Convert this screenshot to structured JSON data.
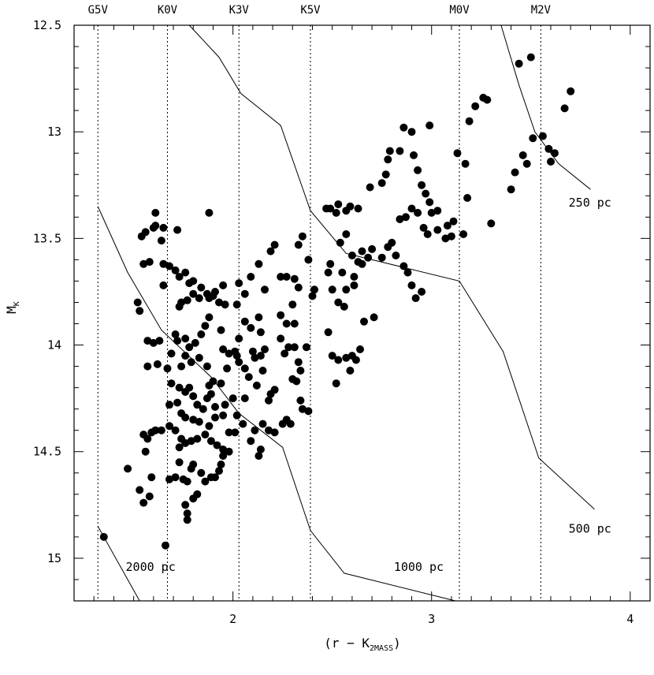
{
  "chart_data": {
    "type": "scatter",
    "xlabel": "(r − K",
    "xlabel_subscript": "2MASS",
    "xlabel_suffix": ")",
    "ylabel": "M",
    "ylabel_subscript": "K",
    "xlim": [
      1.2,
      4.1
    ],
    "ylim": [
      15.2,
      12.5
    ],
    "y_inverted": true,
    "grid": false,
    "x_ticks": [
      2,
      3,
      4
    ],
    "y_ticks": [
      12.5,
      13,
      13.5,
      14,
      14.5,
      15
    ],
    "x_tick_labels": [
      "2",
      "3",
      "4"
    ],
    "y_tick_labels": [
      "12.5",
      "13",
      "13.5",
      "14",
      "14.5",
      "15"
    ],
    "spectral_types": [
      {
        "label": "G5V",
        "x": 1.32
      },
      {
        "label": "K0V",
        "x": 1.67
      },
      {
        "label": "K3V",
        "x": 2.03
      },
      {
        "label": "K5V",
        "x": 2.39
      },
      {
        "label": "M0V",
        "x": 3.14
      },
      {
        "label": "M2V",
        "x": 3.55
      }
    ],
    "distance_curves": [
      {
        "label": "250 pc",
        "label_x": 3.69,
        "label_y": 13.35,
        "points": [
          [
            1.78,
            12.5
          ],
          [
            1.93,
            12.65
          ],
          [
            2.04,
            12.82
          ],
          [
            2.24,
            12.97
          ],
          [
            2.39,
            13.37
          ],
          [
            2.57,
            13.57
          ],
          [
            3.14,
            13.7
          ],
          [
            3.36,
            14.03
          ],
          [
            3.54,
            14.53
          ],
          [
            3.82,
            14.77
          ]
        ]
      },
      {
        "label": "500 pc",
        "label_x": 3.69,
        "label_y": 14.88,
        "points": [
          [
            3.35,
            12.5
          ],
          [
            3.44,
            12.78
          ],
          [
            3.52,
            13.0
          ],
          [
            3.64,
            13.15
          ],
          [
            3.8,
            13.27
          ]
        ]
      },
      {
        "label": "1000 pc",
        "label_x": 2.81,
        "label_y": 15.06,
        "points": [
          [
            1.32,
            13.35
          ],
          [
            1.47,
            13.66
          ],
          [
            1.64,
            13.93
          ],
          [
            1.89,
            14.15
          ],
          [
            2.03,
            14.32
          ],
          [
            2.25,
            14.48
          ],
          [
            2.39,
            14.87
          ],
          [
            2.56,
            15.07
          ],
          [
            3.12,
            15.2
          ]
        ]
      },
      {
        "label": "2000 pc",
        "label_x": 1.46,
        "label_y": 15.06,
        "points": [
          [
            1.32,
            14.85
          ],
          [
            1.53,
            15.2
          ]
        ]
      }
    ],
    "points": [
      [
        1.35,
        14.9
      ],
      [
        1.66,
        14.94
      ],
      [
        1.47,
        14.58
      ],
      [
        1.53,
        14.68
      ],
      [
        1.55,
        14.74
      ],
      [
        1.58,
        14.71
      ],
      [
        1.59,
        14.62
      ],
      [
        1.55,
        14.42
      ],
      [
        1.56,
        14.5
      ],
      [
        1.57,
        14.44
      ],
      [
        1.59,
        14.41
      ],
      [
        1.61,
        14.4
      ],
      [
        1.64,
        14.4
      ],
      [
        1.68,
        14.38
      ],
      [
        1.71,
        14.4
      ],
      [
        1.73,
        14.48
      ],
      [
        1.73,
        14.55
      ],
      [
        1.71,
        14.62
      ],
      [
        1.68,
        14.63
      ],
      [
        1.57,
        14.1
      ],
      [
        1.62,
        14.09
      ],
      [
        1.6,
        13.99
      ],
      [
        1.57,
        13.98
      ],
      [
        1.63,
        13.98
      ],
      [
        1.69,
        14.04
      ],
      [
        1.67,
        14.11
      ],
      [
        1.69,
        14.18
      ],
      [
        1.68,
        14.28
      ],
      [
        1.52,
        13.8
      ],
      [
        1.53,
        13.84
      ],
      [
        1.54,
        13.49
      ],
      [
        1.56,
        13.47
      ],
      [
        1.58,
        13.61
      ],
      [
        1.55,
        13.62
      ],
      [
        1.6,
        13.45
      ],
      [
        1.61,
        13.44
      ],
      [
        1.61,
        13.38
      ],
      [
        1.64,
        13.51
      ],
      [
        1.65,
        13.45
      ],
      [
        1.72,
        13.46
      ],
      [
        1.88,
        13.38
      ],
      [
        1.65,
        13.72
      ],
      [
        1.65,
        13.62
      ],
      [
        1.68,
        13.63
      ],
      [
        1.71,
        13.65
      ],
      [
        1.73,
        13.68
      ],
      [
        1.76,
        13.66
      ],
      [
        1.78,
        13.71
      ],
      [
        1.8,
        13.7
      ],
      [
        1.84,
        13.73
      ],
      [
        1.88,
        13.78
      ],
      [
        1.91,
        13.75
      ],
      [
        1.95,
        13.72
      ],
      [
        2.03,
        13.71
      ],
      [
        2.06,
        13.76
      ],
      [
        2.09,
        13.68
      ],
      [
        1.93,
        13.8
      ],
      [
        1.74,
        13.8
      ],
      [
        1.73,
        13.82
      ],
      [
        1.77,
        13.79
      ],
      [
        1.8,
        13.76
      ],
      [
        1.83,
        13.78
      ],
      [
        1.87,
        13.76
      ],
      [
        1.9,
        13.77
      ],
      [
        1.96,
        13.81
      ],
      [
        2.02,
        13.81
      ],
      [
        1.88,
        13.87
      ],
      [
        1.86,
        13.91
      ],
      [
        1.84,
        13.95
      ],
      [
        1.81,
        13.99
      ],
      [
        1.78,
        14.01
      ],
      [
        1.76,
        13.97
      ],
      [
        1.71,
        13.95
      ],
      [
        1.72,
        13.98
      ],
      [
        1.76,
        14.05
      ],
      [
        1.74,
        14.1
      ],
      [
        1.79,
        14.08
      ],
      [
        1.83,
        14.06
      ],
      [
        1.87,
        14.1
      ],
      [
        1.9,
        14.17
      ],
      [
        1.94,
        14.18
      ],
      [
        1.97,
        14.11
      ],
      [
        1.98,
        14.04
      ],
      [
        2.01,
        14.03
      ],
      [
        2.02,
        14.05
      ],
      [
        1.95,
        14.02
      ],
      [
        1.94,
        13.93
      ],
      [
        2.03,
        13.97
      ],
      [
        1.73,
        14.2
      ],
      [
        1.76,
        14.22
      ],
      [
        1.78,
        14.2
      ],
      [
        1.8,
        14.24
      ],
      [
        1.82,
        14.28
      ],
      [
        1.85,
        14.3
      ],
      [
        1.87,
        14.25
      ],
      [
        1.89,
        14.23
      ],
      [
        1.88,
        14.19
      ],
      [
        1.91,
        14.29
      ],
      [
        1.96,
        14.28
      ],
      [
        2.0,
        14.25
      ],
      [
        1.72,
        14.27
      ],
      [
        1.74,
        14.32
      ],
      [
        1.76,
        14.34
      ],
      [
        1.8,
        14.35
      ],
      [
        1.83,
        14.36
      ],
      [
        1.88,
        14.38
      ],
      [
        1.91,
        14.34
      ],
      [
        1.95,
        14.33
      ],
      [
        2.02,
        14.33
      ],
      [
        2.05,
        14.37
      ],
      [
        1.98,
        14.41
      ],
      [
        2.01,
        14.41
      ],
      [
        1.74,
        14.44
      ],
      [
        1.76,
        14.46
      ],
      [
        1.79,
        14.45
      ],
      [
        1.82,
        14.44
      ],
      [
        1.86,
        14.42
      ],
      [
        1.89,
        14.45
      ],
      [
        1.92,
        14.47
      ],
      [
        1.95,
        14.49
      ],
      [
        1.98,
        14.5
      ],
      [
        1.79,
        14.58
      ],
      [
        1.75,
        14.63
      ],
      [
        1.77,
        14.64
      ],
      [
        1.8,
        14.56
      ],
      [
        1.84,
        14.6
      ],
      [
        1.86,
        14.64
      ],
      [
        1.89,
        14.62
      ],
      [
        1.91,
        14.62
      ],
      [
        1.93,
        14.59
      ],
      [
        1.94,
        14.56
      ],
      [
        1.95,
        14.52
      ],
      [
        1.76,
        14.75
      ],
      [
        1.77,
        14.82
      ],
      [
        1.77,
        14.79
      ],
      [
        1.8,
        14.72
      ],
      [
        1.82,
        14.7
      ],
      [
        2.09,
        14.45
      ],
      [
        2.11,
        14.4
      ],
      [
        2.15,
        14.37
      ],
      [
        2.18,
        14.4
      ],
      [
        2.21,
        14.41
      ],
      [
        2.25,
        14.37
      ],
      [
        2.27,
        14.35
      ],
      [
        2.29,
        14.37
      ],
      [
        2.13,
        14.52
      ],
      [
        2.14,
        14.49
      ],
      [
        2.06,
        13.89
      ],
      [
        2.09,
        13.92
      ],
      [
        2.13,
        13.87
      ],
      [
        2.14,
        13.94
      ],
      [
        2.16,
        14.02
      ],
      [
        2.14,
        14.05
      ],
      [
        2.1,
        14.03
      ],
      [
        2.11,
        14.06
      ],
      [
        2.06,
        14.11
      ],
      [
        2.08,
        14.15
      ],
      [
        2.03,
        14.08
      ],
      [
        2.06,
        14.25
      ],
      [
        2.12,
        14.19
      ],
      [
        2.15,
        14.12
      ],
      [
        2.19,
        14.23
      ],
      [
        2.18,
        14.26
      ],
      [
        2.21,
        14.21
      ],
      [
        2.13,
        13.62
      ],
      [
        2.19,
        13.56
      ],
      [
        2.21,
        13.53
      ],
      [
        2.16,
        13.74
      ],
      [
        2.24,
        13.68
      ],
      [
        2.27,
        13.68
      ],
      [
        2.31,
        13.69
      ],
      [
        2.33,
        13.73
      ],
      [
        2.3,
        13.81
      ],
      [
        2.24,
        13.86
      ],
      [
        2.27,
        13.9
      ],
      [
        2.24,
        13.97
      ],
      [
        2.26,
        14.04
      ],
      [
        2.28,
        14.01
      ],
      [
        2.31,
        14.01
      ],
      [
        2.31,
        13.9
      ],
      [
        2.33,
        13.53
      ],
      [
        2.35,
        13.49
      ],
      [
        2.38,
        13.6
      ],
      [
        2.4,
        13.77
      ],
      [
        2.41,
        13.74
      ],
      [
        2.33,
        14.08
      ],
      [
        2.34,
        14.12
      ],
      [
        2.37,
        14.01
      ],
      [
        2.3,
        14.16
      ],
      [
        2.32,
        14.17
      ],
      [
        2.34,
        14.26
      ],
      [
        2.35,
        14.3
      ],
      [
        2.38,
        14.31
      ],
      [
        2.47,
        13.36
      ],
      [
        2.49,
        13.36
      ],
      [
        2.52,
        13.38
      ],
      [
        2.53,
        13.34
      ],
      [
        2.57,
        13.37
      ],
      [
        2.59,
        13.35
      ],
      [
        2.63,
        13.36
      ],
      [
        2.54,
        13.52
      ],
      [
        2.49,
        13.62
      ],
      [
        2.48,
        13.66
      ],
      [
        2.55,
        13.66
      ],
      [
        2.5,
        13.74
      ],
      [
        2.53,
        13.8
      ],
      [
        2.56,
        13.82
      ],
      [
        2.57,
        13.74
      ],
      [
        2.48,
        13.94
      ],
      [
        2.5,
        14.05
      ],
      [
        2.53,
        14.07
      ],
      [
        2.57,
        14.06
      ],
      [
        2.6,
        14.05
      ],
      [
        2.62,
        14.07
      ],
      [
        2.64,
        14.02
      ],
      [
        2.52,
        14.18
      ],
      [
        2.59,
        14.12
      ],
      [
        2.61,
        13.68
      ],
      [
        2.61,
        13.72
      ],
      [
        2.65,
        13.62
      ],
      [
        2.66,
        13.89
      ],
      [
        2.71,
        13.87
      ],
      [
        2.57,
        13.48
      ],
      [
        2.6,
        13.58
      ],
      [
        2.63,
        13.61
      ],
      [
        2.65,
        13.56
      ],
      [
        2.68,
        13.59
      ],
      [
        2.7,
        13.55
      ],
      [
        2.75,
        13.59
      ],
      [
        2.78,
        13.54
      ],
      [
        2.8,
        13.52
      ],
      [
        2.82,
        13.58
      ],
      [
        2.86,
        13.63
      ],
      [
        2.88,
        13.66
      ],
      [
        2.9,
        13.72
      ],
      [
        2.92,
        13.78
      ],
      [
        2.95,
        13.75
      ],
      [
        2.69,
        13.26
      ],
      [
        2.75,
        13.24
      ],
      [
        2.77,
        13.2
      ],
      [
        2.78,
        13.13
      ],
      [
        2.79,
        13.09
      ],
      [
        2.84,
        13.09
      ],
      [
        2.86,
        12.98
      ],
      [
        2.9,
        13.0
      ],
      [
        2.91,
        13.11
      ],
      [
        2.93,
        13.18
      ],
      [
        2.95,
        13.25
      ],
      [
        2.97,
        13.29
      ],
      [
        2.99,
        13.33
      ],
      [
        3.0,
        13.38
      ],
      [
        3.03,
        13.37
      ],
      [
        2.84,
        13.41
      ],
      [
        2.87,
        13.4
      ],
      [
        2.9,
        13.36
      ],
      [
        2.93,
        13.38
      ],
      [
        2.96,
        13.45
      ],
      [
        2.98,
        13.48
      ],
      [
        3.03,
        13.46
      ],
      [
        3.07,
        13.5
      ],
      [
        3.08,
        13.44
      ],
      [
        3.11,
        13.42
      ],
      [
        3.1,
        13.49
      ],
      [
        2.99,
        12.97
      ],
      [
        3.13,
        13.1
      ],
      [
        3.17,
        13.15
      ],
      [
        3.18,
        13.31
      ],
      [
        3.16,
        13.48
      ],
      [
        3.19,
        12.95
      ],
      [
        3.22,
        12.88
      ],
      [
        3.26,
        12.84
      ],
      [
        3.28,
        12.85
      ],
      [
        3.3,
        13.43
      ],
      [
        3.4,
        13.27
      ],
      [
        3.42,
        13.19
      ],
      [
        3.46,
        13.11
      ],
      [
        3.48,
        13.15
      ],
      [
        3.51,
        13.03
      ],
      [
        3.44,
        12.68
      ],
      [
        3.5,
        12.65
      ],
      [
        3.56,
        13.02
      ],
      [
        3.59,
        13.08
      ],
      [
        3.6,
        13.14
      ],
      [
        3.62,
        13.1
      ],
      [
        3.67,
        12.89
      ],
      [
        3.7,
        12.81
      ]
    ]
  }
}
